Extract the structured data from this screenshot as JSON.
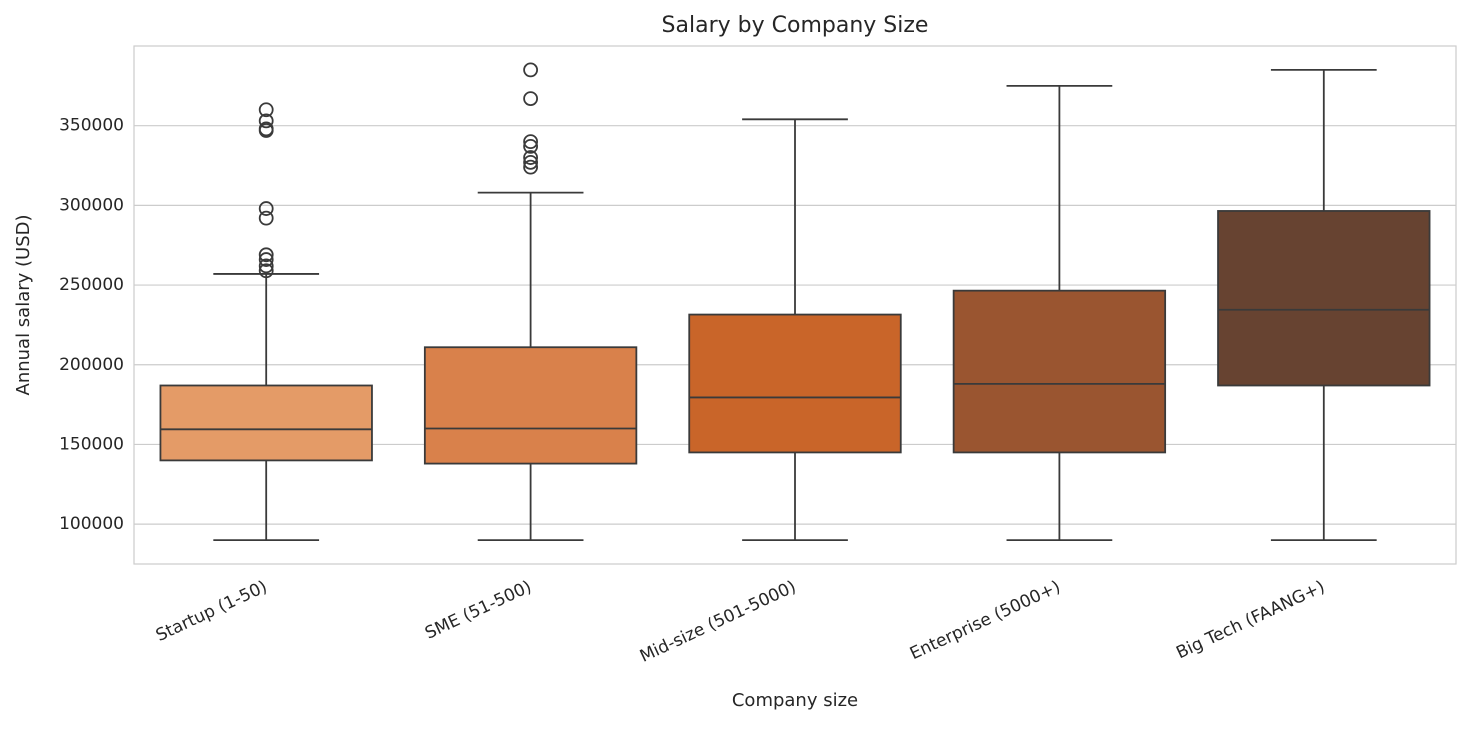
{
  "chart_data": {
    "type": "box",
    "title": "Salary by Company Size",
    "x_label": "Company size",
    "y_label": "Annual salary (USD)",
    "categories": [
      "Startup (1-50)",
      "SME (51-500)",
      "Mid-size (501-5000)",
      "Enterprise (5000+)",
      "Big Tech (FAANG+)"
    ],
    "colors": [
      "#e49b67",
      "#d9814b",
      "#c96529",
      "#9a5530",
      "#674331"
    ],
    "boxes": [
      {
        "whislo": 90000,
        "q1": 140000,
        "med": 159500,
        "q3": 187000,
        "whishi": 257000,
        "fliers": [
          360000,
          353000,
          348000,
          347000,
          298000,
          292000,
          269000,
          266000,
          262000,
          259000
        ]
      },
      {
        "whislo": 90000,
        "q1": 138000,
        "med": 160000,
        "q3": 211000,
        "whishi": 308000,
        "fliers": [
          385000,
          367000,
          340000,
          337000,
          330000,
          327000,
          324000
        ]
      },
      {
        "whislo": 90000,
        "q1": 145000,
        "med": 179500,
        "q3": 231500,
        "whishi": 354000,
        "fliers": []
      },
      {
        "whislo": 90000,
        "q1": 145000,
        "med": 188000,
        "q3": 246500,
        "whishi": 375000,
        "fliers": []
      },
      {
        "whislo": 90000,
        "q1": 187000,
        "med": 234500,
        "q3": 296500,
        "whishi": 385000,
        "fliers": []
      }
    ],
    "ylim": [
      75000,
      400000
    ],
    "yticks": [
      100000,
      150000,
      200000,
      250000,
      300000,
      350000
    ],
    "grid": true
  }
}
